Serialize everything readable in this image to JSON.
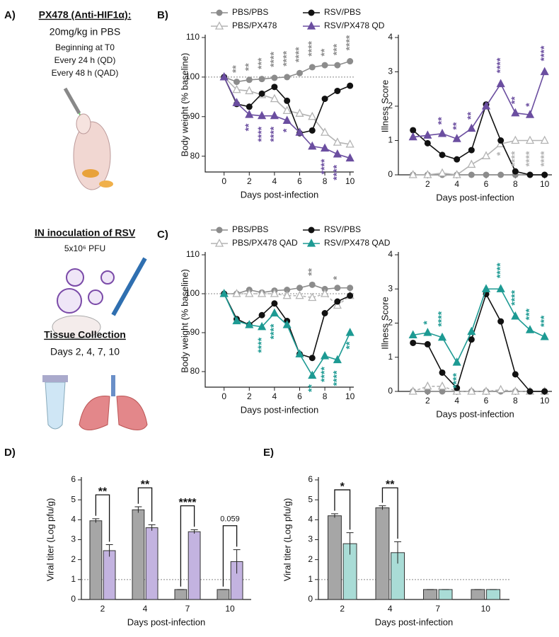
{
  "panel_labels": [
    "A)",
    "B)",
    "C)",
    "D)",
    "E)"
  ],
  "protocol": {
    "drug_title": "PX478 (Anti-HIF1α):",
    "drug_lines": [
      "20mg/kg in PBS",
      "Beginning at T0",
      "Every 24 h (QD)",
      "Every 48 h (QAD)"
    ],
    "inoculation_title": "IN inoculation of RSV",
    "inoculation_dose": "5x10⁶ PFU",
    "collection_title": "Tissue Collection",
    "collection_days": "Days 2, 4, 7, 10"
  },
  "chart_data": [
    {
      "type": "line",
      "ylabel": "Body weight (% baseline)",
      "xlabel": "Days post-infection",
      "x": [
        0,
        1,
        2,
        3,
        4,
        5,
        6,
        7,
        8,
        9,
        10
      ],
      "xlim": [
        -1.5,
        10.3
      ],
      "xticks": [
        0,
        2,
        4,
        6,
        8,
        10
      ],
      "ylim": [
        76,
        110
      ],
      "yticks": [
        80,
        90,
        100,
        110
      ],
      "hline": 100,
      "series": [
        {
          "name": "PBS/PBS",
          "color": "#8c8c8c",
          "marker": "circle",
          "values": [
            100,
            98.8,
            99.3,
            99.5,
            99.8,
            100,
            101,
            102.5,
            103,
            103,
            104
          ]
        },
        {
          "name": "PBS/PX478",
          "color": "#b3b3b3",
          "marker": "triangle-open",
          "values": [
            100,
            96.8,
            96.5,
            95.5,
            94.5,
            91.5,
            90.8,
            90,
            86,
            83.5,
            83
          ]
        },
        {
          "name": "RSV/PBS",
          "color": "#111111",
          "marker": "circle",
          "values": [
            100,
            93.2,
            92.5,
            95.8,
            97.5,
            94,
            85.8,
            86.5,
            94.5,
            96.5,
            97.8
          ]
        },
        {
          "name": "RSV/PX478 QD",
          "color": "#6b4ea0",
          "marker": "triangle",
          "values": [
            100,
            93.5,
            90.5,
            90.2,
            90.2,
            89,
            86,
            82.5,
            82,
            80.5,
            79.5
          ]
        }
      ],
      "annotations": [
        {
          "x": 1,
          "label": "**",
          "series": 0,
          "side": "above"
        },
        {
          "x": 2,
          "label": "**",
          "series": 0,
          "side": "above"
        },
        {
          "x": 3,
          "label": "***",
          "series": 0,
          "side": "above"
        },
        {
          "x": 4,
          "label": "****",
          "series": 0,
          "side": "above"
        },
        {
          "x": 5,
          "label": "****",
          "series": 0,
          "side": "above"
        },
        {
          "x": 6,
          "label": "****",
          "series": 0,
          "side": "above"
        },
        {
          "x": 7,
          "label": "****",
          "series": 0,
          "side": "above"
        },
        {
          "x": 8,
          "label": "**",
          "series": 0,
          "side": "above"
        },
        {
          "x": 9,
          "label": "***",
          "series": 0,
          "side": "above"
        },
        {
          "x": 10,
          "label": "****",
          "series": 0,
          "side": "above"
        },
        {
          "x": 2,
          "label": "**",
          "series": 3,
          "side": "below"
        },
        {
          "x": 3,
          "label": "****",
          "series": 3,
          "side": "below"
        },
        {
          "x": 4,
          "label": "****",
          "series": 3,
          "side": "below"
        },
        {
          "x": 5,
          "label": "*",
          "series": 3,
          "side": "below"
        },
        {
          "x": 8,
          "label": "****",
          "series": 3,
          "side": "below"
        },
        {
          "x": 9,
          "label": "****",
          "series": 3,
          "side": "below"
        }
      ]
    },
    {
      "type": "line",
      "ylabel": "Illness Score",
      "xlabel": "Days post-infection",
      "x": [
        1,
        2,
        3,
        4,
        5,
        6,
        7,
        8,
        9,
        10
      ],
      "xlim": [
        0,
        10.5
      ],
      "xticks": [
        2,
        4,
        6,
        8,
        10
      ],
      "ylim": [
        0,
        4
      ],
      "yticks": [
        0,
        1,
        2,
        3,
        4
      ],
      "series": [
        {
          "color": "#8c8c8c",
          "marker": "circle",
          "values": [
            0,
            0,
            0,
            0,
            0,
            0,
            0,
            0,
            0,
            0
          ]
        },
        {
          "color": "#b3b3b3",
          "marker": "triangle-open",
          "values": [
            0,
            0,
            0.05,
            0,
            0.3,
            0.55,
            0.9,
            1,
            1,
            1
          ]
        },
        {
          "color": "#111111",
          "marker": "circle",
          "values": [
            1.3,
            0.92,
            0.58,
            0.45,
            0.72,
            2.05,
            1.0,
            0.1,
            0,
            0
          ]
        },
        {
          "color": "#6b4ea0",
          "marker": "triangle",
          "values": [
            1.1,
            1.15,
            1.2,
            1.05,
            1.35,
            2.0,
            2.65,
            1.8,
            1.75,
            3.0
          ]
        }
      ],
      "annotations": [
        {
          "x": 3,
          "label": "**",
          "series": 3,
          "side": "above"
        },
        {
          "x": 4,
          "label": "**",
          "series": 3,
          "side": "above"
        },
        {
          "x": 5,
          "label": "**",
          "series": 3,
          "side": "above"
        },
        {
          "x": 7,
          "label": "****",
          "series": 3,
          "side": "above"
        },
        {
          "x": 8,
          "label": "**",
          "series": 3,
          "side": "above"
        },
        {
          "x": 9,
          "label": "*",
          "series": 3,
          "side": "above"
        },
        {
          "x": 10,
          "label": "****",
          "series": 3,
          "side": "above"
        },
        {
          "x": 7,
          "label": "*",
          "series": 1,
          "side": "below"
        },
        {
          "x": 8,
          "label": "****",
          "series": 1,
          "side": "below"
        },
        {
          "x": 9,
          "label": "****",
          "series": 1,
          "side": "below"
        },
        {
          "x": 10,
          "label": "****",
          "series": 1,
          "side": "below"
        }
      ]
    },
    {
      "type": "line",
      "ylabel": "Body weight (% baseline)",
      "xlabel": "Days post-infection",
      "x": [
        0,
        1,
        2,
        3,
        4,
        5,
        6,
        7,
        8,
        9,
        10
      ],
      "xlim": [
        -1.5,
        10.3
      ],
      "xticks": [
        0,
        2,
        4,
        6,
        8,
        10
      ],
      "ylim": [
        76,
        110
      ],
      "yticks": [
        80,
        90,
        100,
        110
      ],
      "hline": 100,
      "series": [
        {
          "name": "PBS/PBS",
          "color": "#8c8c8c",
          "marker": "circle",
          "values": [
            100,
            100,
            101,
            100.3,
            100.8,
            101,
            101.5,
            102.3,
            101.2,
            101.5,
            101.5
          ]
        },
        {
          "name": "PBS/PX478 QAD",
          "color": "#b3b3b3",
          "marker": "triangle-open",
          "dashed": true,
          "values": [
            100,
            100,
            100,
            100,
            100,
            99.5,
            99.5,
            99,
            100,
            97,
            99.5
          ]
        },
        {
          "name": "RSV/PBS",
          "color": "#111111",
          "marker": "circle",
          "values": [
            100,
            93.5,
            92,
            94.5,
            97.5,
            93,
            84.5,
            83.5,
            95,
            98,
            99.5
          ]
        },
        {
          "name": "RSV/PX478 QAD",
          "color": "#1d9a93",
          "marker": "triangle",
          "values": [
            100,
            93,
            92,
            91.5,
            95,
            92,
            84.5,
            79,
            84,
            83,
            90
          ]
        }
      ],
      "annotations": [
        {
          "x": 7,
          "label": "**",
          "series": 0,
          "side": "above"
        },
        {
          "x": 9,
          "label": "*",
          "series": 0,
          "side": "above"
        },
        {
          "x": 3,
          "label": "****",
          "series": 3,
          "side": "below"
        },
        {
          "x": 4,
          "label": "****",
          "series": 3,
          "side": "below"
        },
        {
          "x": 7,
          "label": "**",
          "series": 3,
          "side": "below"
        },
        {
          "x": 8,
          "label": "****",
          "series": 3,
          "side": "below"
        },
        {
          "x": 9,
          "label": "****",
          "series": 3,
          "side": "below"
        },
        {
          "x": 10,
          "label": "**",
          "series": 3,
          "side": "below"
        }
      ]
    },
    {
      "type": "line",
      "ylabel": "Illness Score",
      "xlabel": "Days post-infection",
      "x": [
        1,
        2,
        3,
        4,
        5,
        6,
        7,
        8,
        9,
        10
      ],
      "xlim": [
        0,
        10.5
      ],
      "xticks": [
        2,
        4,
        6,
        8,
        10
      ],
      "ylim": [
        0,
        4
      ],
      "yticks": [
        0,
        1,
        2,
        3,
        4
      ],
      "series": [
        {
          "color": "#8c8c8c",
          "marker": "circle",
          "values": [
            0,
            0,
            0,
            0,
            0,
            0,
            0,
            0,
            0,
            0
          ]
        },
        {
          "color": "#b3b3b3",
          "marker": "triangle-open",
          "dashed": true,
          "values": [
            0,
            0.15,
            0.15,
            0,
            0,
            0,
            0.05,
            0,
            0,
            0
          ]
        },
        {
          "color": "#111111",
          "marker": "circle",
          "values": [
            1.42,
            1.38,
            0.55,
            0.1,
            1.52,
            2.85,
            2.05,
            0.5,
            0,
            0
          ]
        },
        {
          "color": "#1d9a93",
          "marker": "triangle",
          "values": [
            1.65,
            1.72,
            1.58,
            0.85,
            1.75,
            3.0,
            3.0,
            2.2,
            1.8,
            1.6
          ]
        }
      ],
      "annotations": [
        {
          "x": 2,
          "label": "*",
          "series": 3,
          "side": "above"
        },
        {
          "x": 3,
          "label": "****",
          "series": 3,
          "side": "above"
        },
        {
          "x": 4,
          "label": "****",
          "series": 3,
          "side": "below"
        },
        {
          "x": 7,
          "label": "****",
          "series": 3,
          "side": "above"
        },
        {
          "x": 8,
          "label": "****",
          "series": 3,
          "side": "above"
        },
        {
          "x": 9,
          "label": "***",
          "series": 3,
          "side": "above"
        },
        {
          "x": 10,
          "label": "***",
          "series": 3,
          "side": "above"
        }
      ]
    },
    {
      "type": "bar",
      "ylabel": "Viral titer (Log pfu/g)",
      "xlabel": "Days post-infection",
      "categories": [
        "2",
        "4",
        "7",
        "10"
      ],
      "ylim": [
        0,
        6
      ],
      "yticks": [
        0,
        1,
        2,
        3,
        4,
        5,
        6
      ],
      "hline": 1,
      "series": [
        {
          "color": "#a6a6a6",
          "values": [
            3.95,
            4.5,
            0.5,
            0.5
          ],
          "errors": [
            0.1,
            0.15,
            0,
            0
          ]
        },
        {
          "color": "#c3b3e0",
          "values": [
            2.45,
            3.6,
            3.4,
            1.9
          ],
          "errors": [
            0.3,
            0.15,
            0.1,
            0.6
          ]
        }
      ],
      "brackets": [
        {
          "category": 0,
          "label": "**"
        },
        {
          "category": 1,
          "label": "**"
        },
        {
          "category": 2,
          "label": "****"
        },
        {
          "category": 3,
          "label": "0.059"
        }
      ]
    },
    {
      "type": "bar",
      "ylabel": "Viral titer (Log pfu/g)",
      "xlabel": "Days post-infection",
      "categories": [
        "2",
        "4",
        "7",
        "10"
      ],
      "ylim": [
        0,
        6
      ],
      "yticks": [
        0,
        1,
        2,
        3,
        4,
        5,
        6
      ],
      "hline": 1,
      "series": [
        {
          "color": "#a6a6a6",
          "values": [
            4.2,
            4.6,
            0.5,
            0.5
          ],
          "errors": [
            0.1,
            0.1,
            0,
            0
          ]
        },
        {
          "color": "#a9dcd6",
          "values": [
            2.8,
            2.35,
            0.5,
            0.5
          ],
          "errors": [
            0.55,
            0.55,
            0,
            0
          ]
        }
      ],
      "brackets": [
        {
          "category": 0,
          "label": "*"
        },
        {
          "category": 1,
          "label": "**"
        }
      ]
    }
  ]
}
